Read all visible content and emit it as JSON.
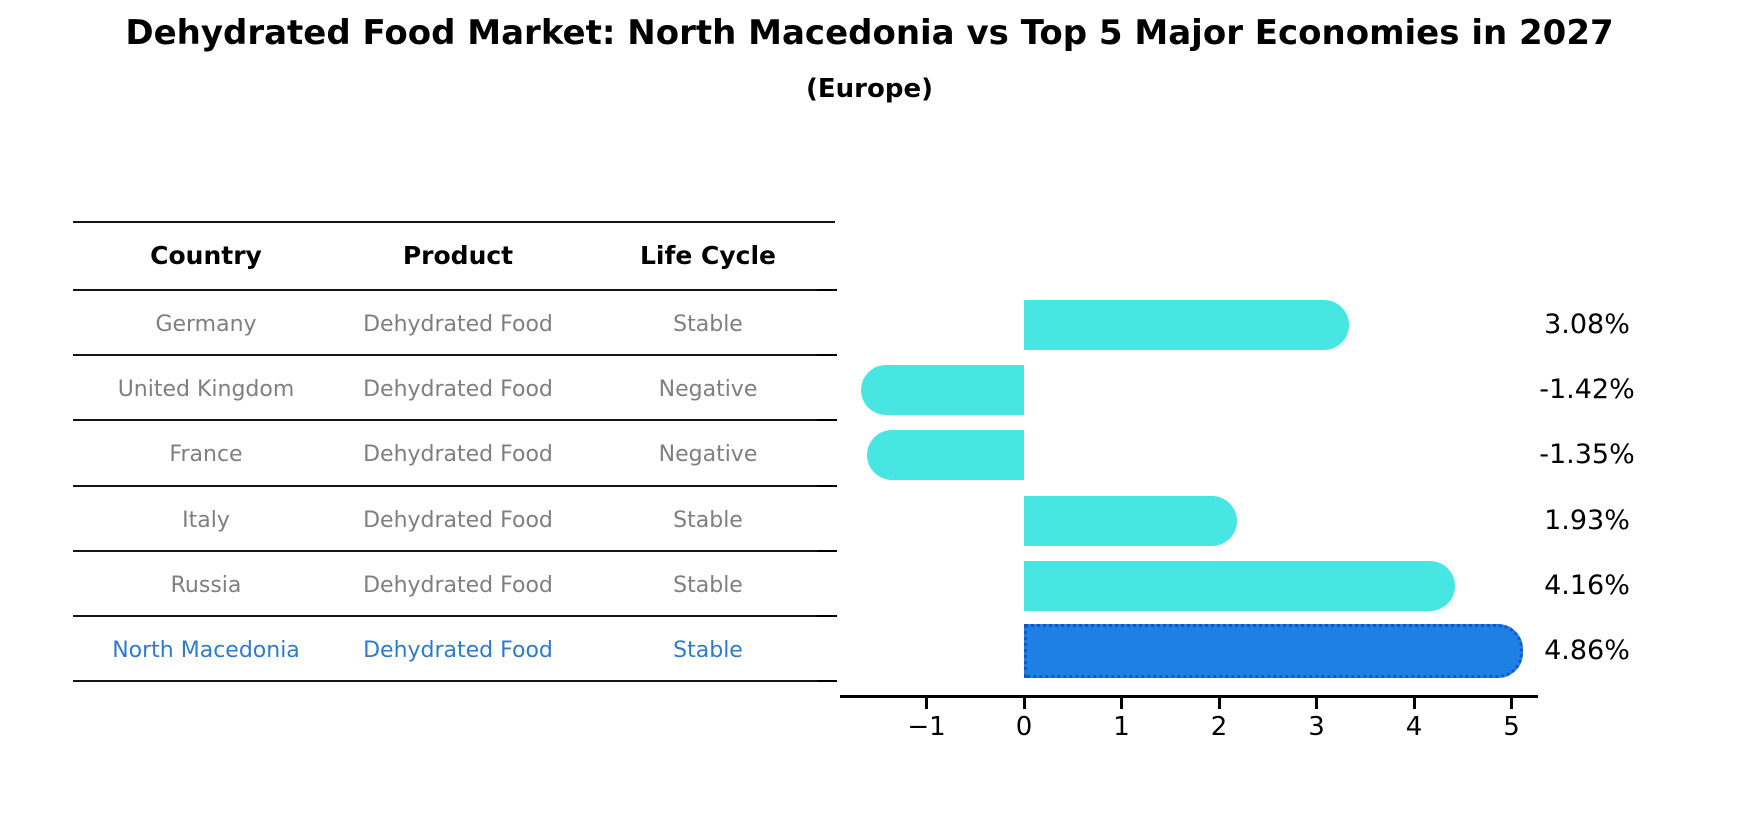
{
  "title": "Dehydrated Food Market: North Macedonia vs Top 5 Major Economies in 2027",
  "subtitle": "(Europe)",
  "table": {
    "headers": [
      "Country",
      "Product",
      "Life Cycle"
    ],
    "rows": [
      {
        "country": "Germany",
        "product": "Dehydrated Food",
        "life_cycle": "Stable",
        "highlighted": false
      },
      {
        "country": "United Kingdom",
        "product": "Dehydrated Food",
        "life_cycle": "Negative",
        "highlighted": false
      },
      {
        "country": "France",
        "product": "Dehydrated Food",
        "life_cycle": "Negative",
        "highlighted": false
      },
      {
        "country": "Italy",
        "product": "Dehydrated Food",
        "life_cycle": "Stable",
        "highlighted": false
      },
      {
        "country": "Russia",
        "product": "Dehydrated Food",
        "life_cycle": "Stable",
        "highlighted": false
      },
      {
        "country": "North Macedonia",
        "product": "Dehydrated Food",
        "life_cycle": "Stable",
        "highlighted": true
      }
    ]
  },
  "chart_data": {
    "type": "bar",
    "orientation": "horizontal",
    "categories": [
      "Germany",
      "United Kingdom",
      "France",
      "Italy",
      "Russia",
      "North Macedonia"
    ],
    "values": [
      3.08,
      -1.42,
      -1.35,
      1.93,
      4.16,
      4.86
    ],
    "value_labels": [
      "3.08%",
      "-1.42%",
      "-1.35%",
      "1.93%",
      "4.16%",
      "4.86%"
    ],
    "highlight_index": 5,
    "xticks": [
      {
        "value": -1,
        "label": "−1"
      },
      {
        "value": 0,
        "label": "0"
      },
      {
        "value": 1,
        "label": "1"
      },
      {
        "value": 2,
        "label": "2"
      },
      {
        "value": 3,
        "label": "3"
      },
      {
        "value": 4,
        "label": "4"
      },
      {
        "value": 5,
        "label": "5"
      }
    ],
    "xlim": [
      -1.95,
      5.3
    ],
    "grid": false,
    "legend": false,
    "colors": {
      "bar": "#48E6E2",
      "highlight_bar": "#1E7FE5",
      "highlight_bar_border": "#1458C8",
      "highlight_text": "#2E7CC9",
      "muted_text": "#7f7f7f",
      "axis": "#000000"
    }
  }
}
